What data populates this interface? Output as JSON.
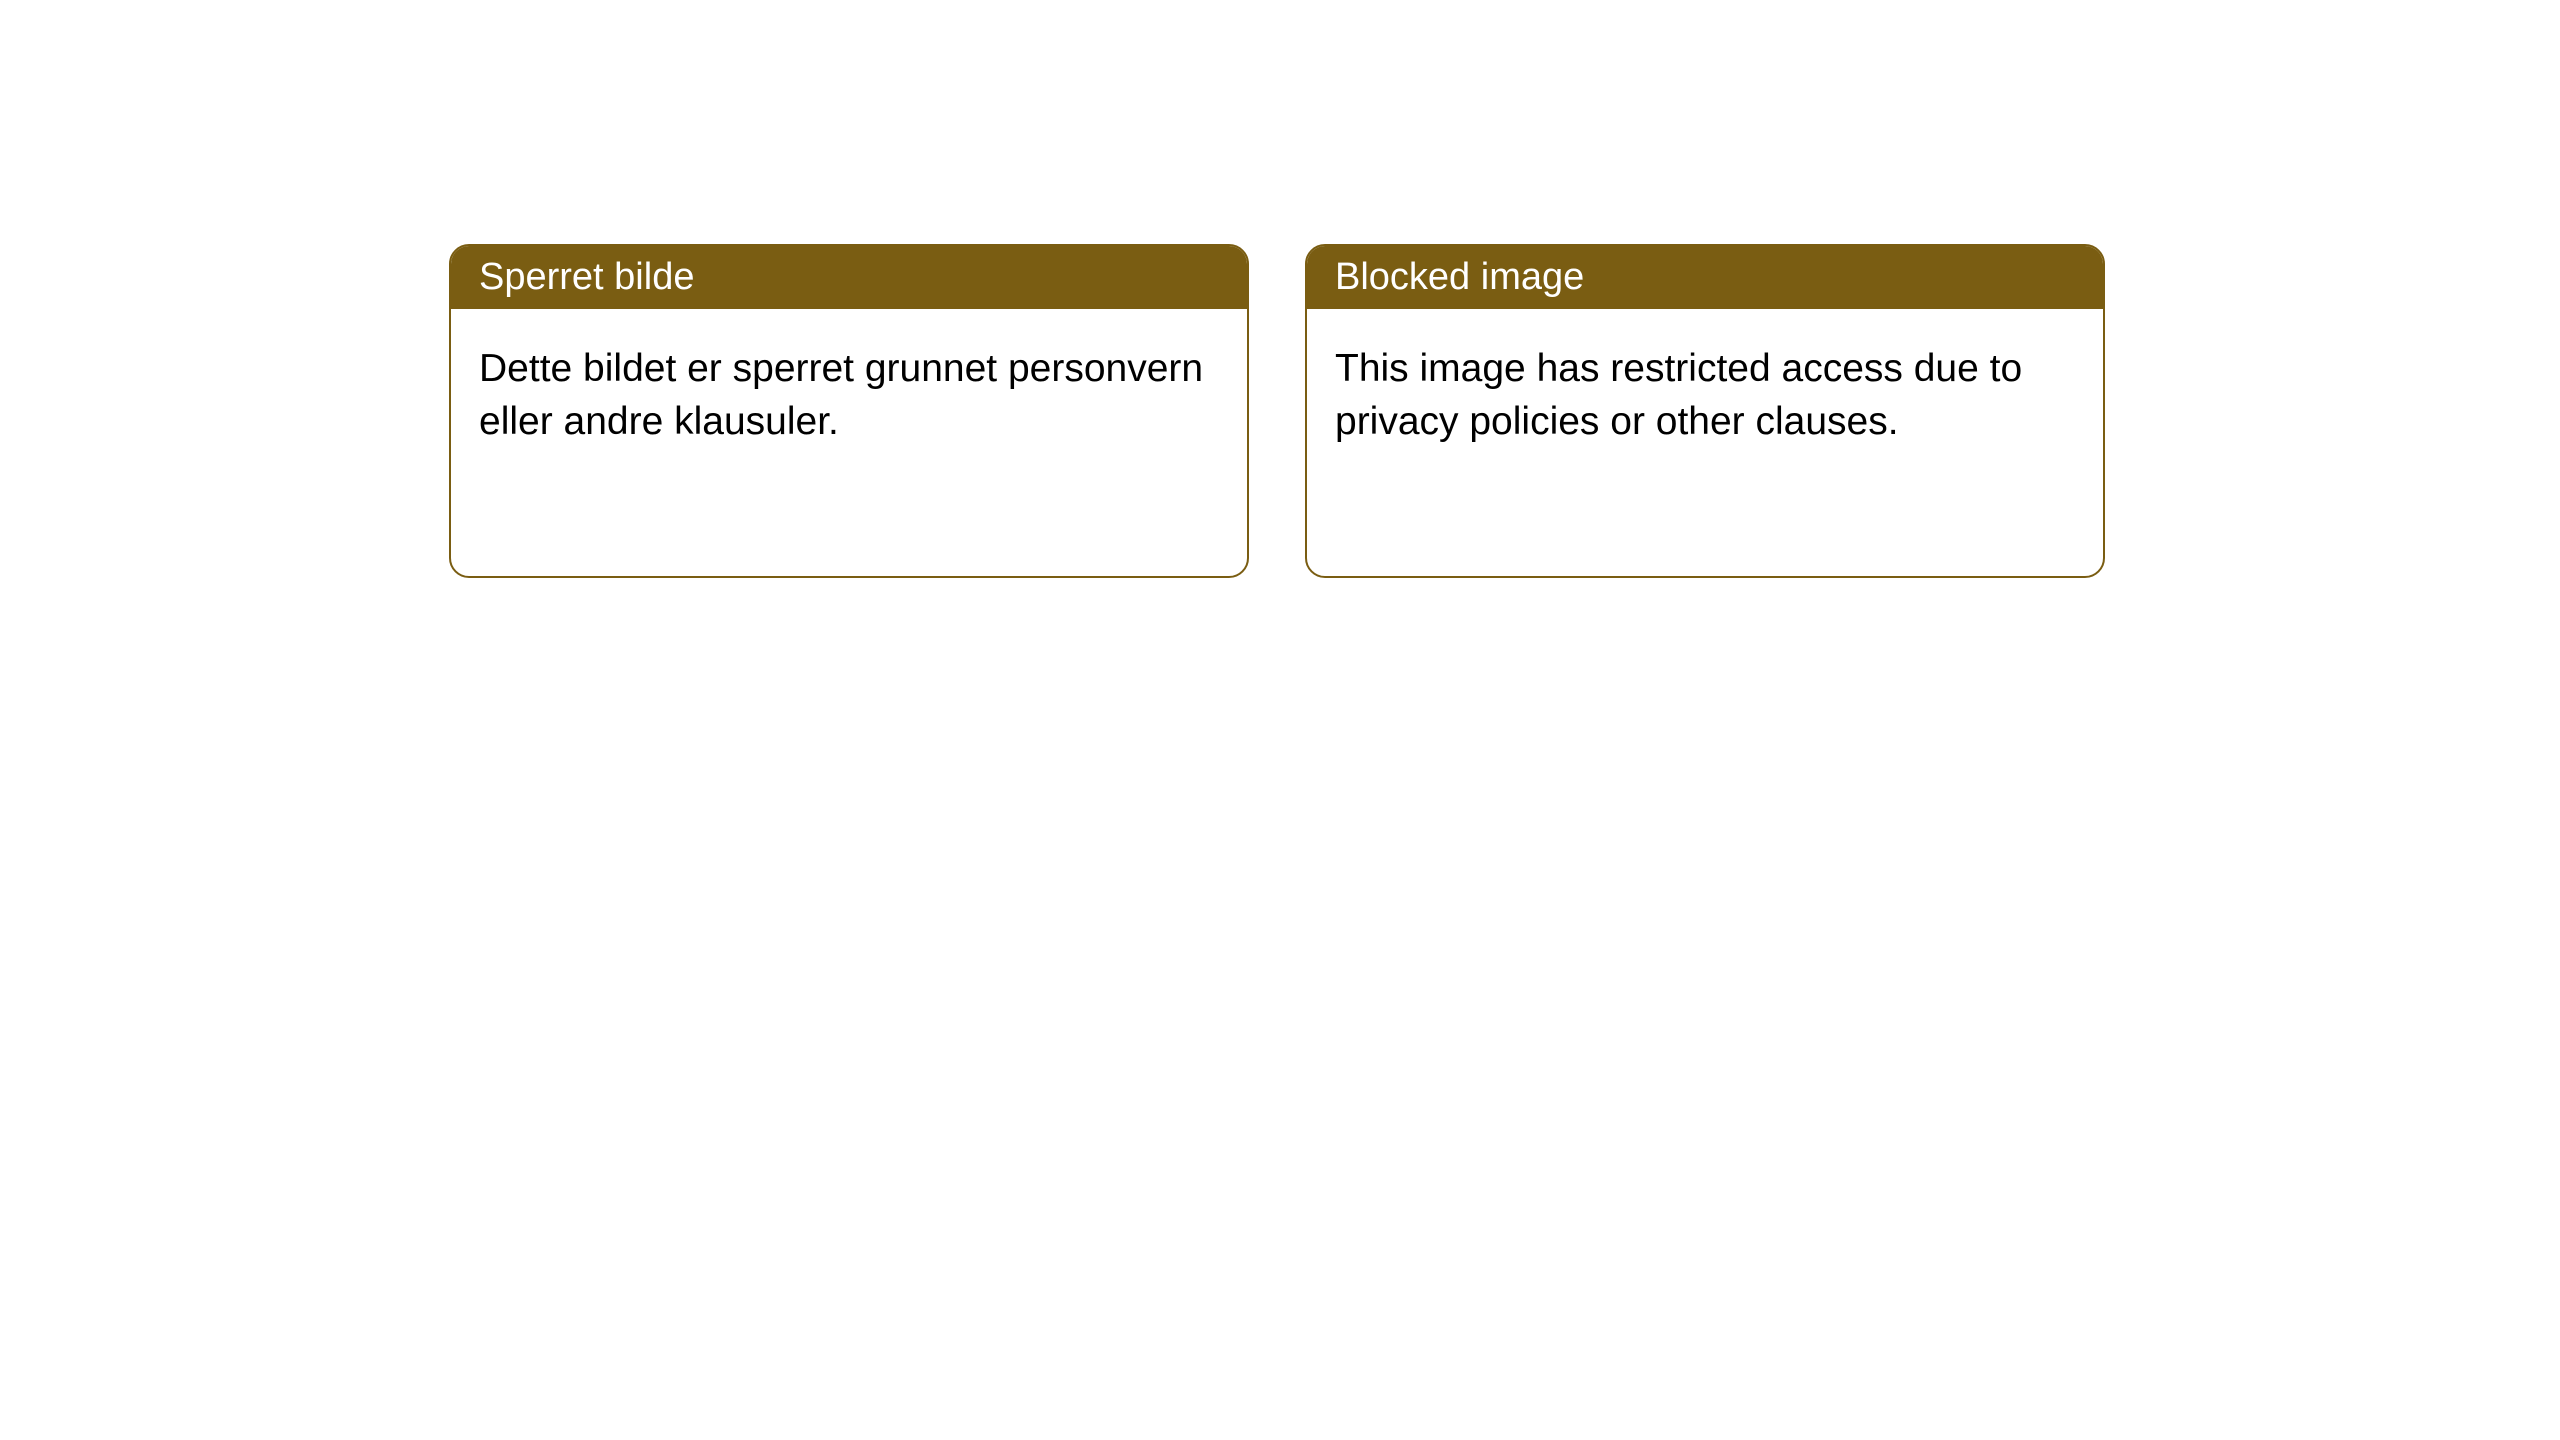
{
  "cards": [
    {
      "title": "Sperret bilde",
      "body": "Dette bildet er sperret grunnet personvern eller andre klausuler."
    },
    {
      "title": "Blocked image",
      "body": "This image has restricted access due to privacy policies or other clauses."
    }
  ],
  "styling": {
    "card_border_color": "#7a5d12",
    "header_bg_color": "#7a5d12",
    "header_text_color": "#ffffff",
    "body_text_color": "#000000",
    "card_bg_color": "#ffffff",
    "border_radius": 20,
    "title_fontsize": 38,
    "body_fontsize": 39
  }
}
